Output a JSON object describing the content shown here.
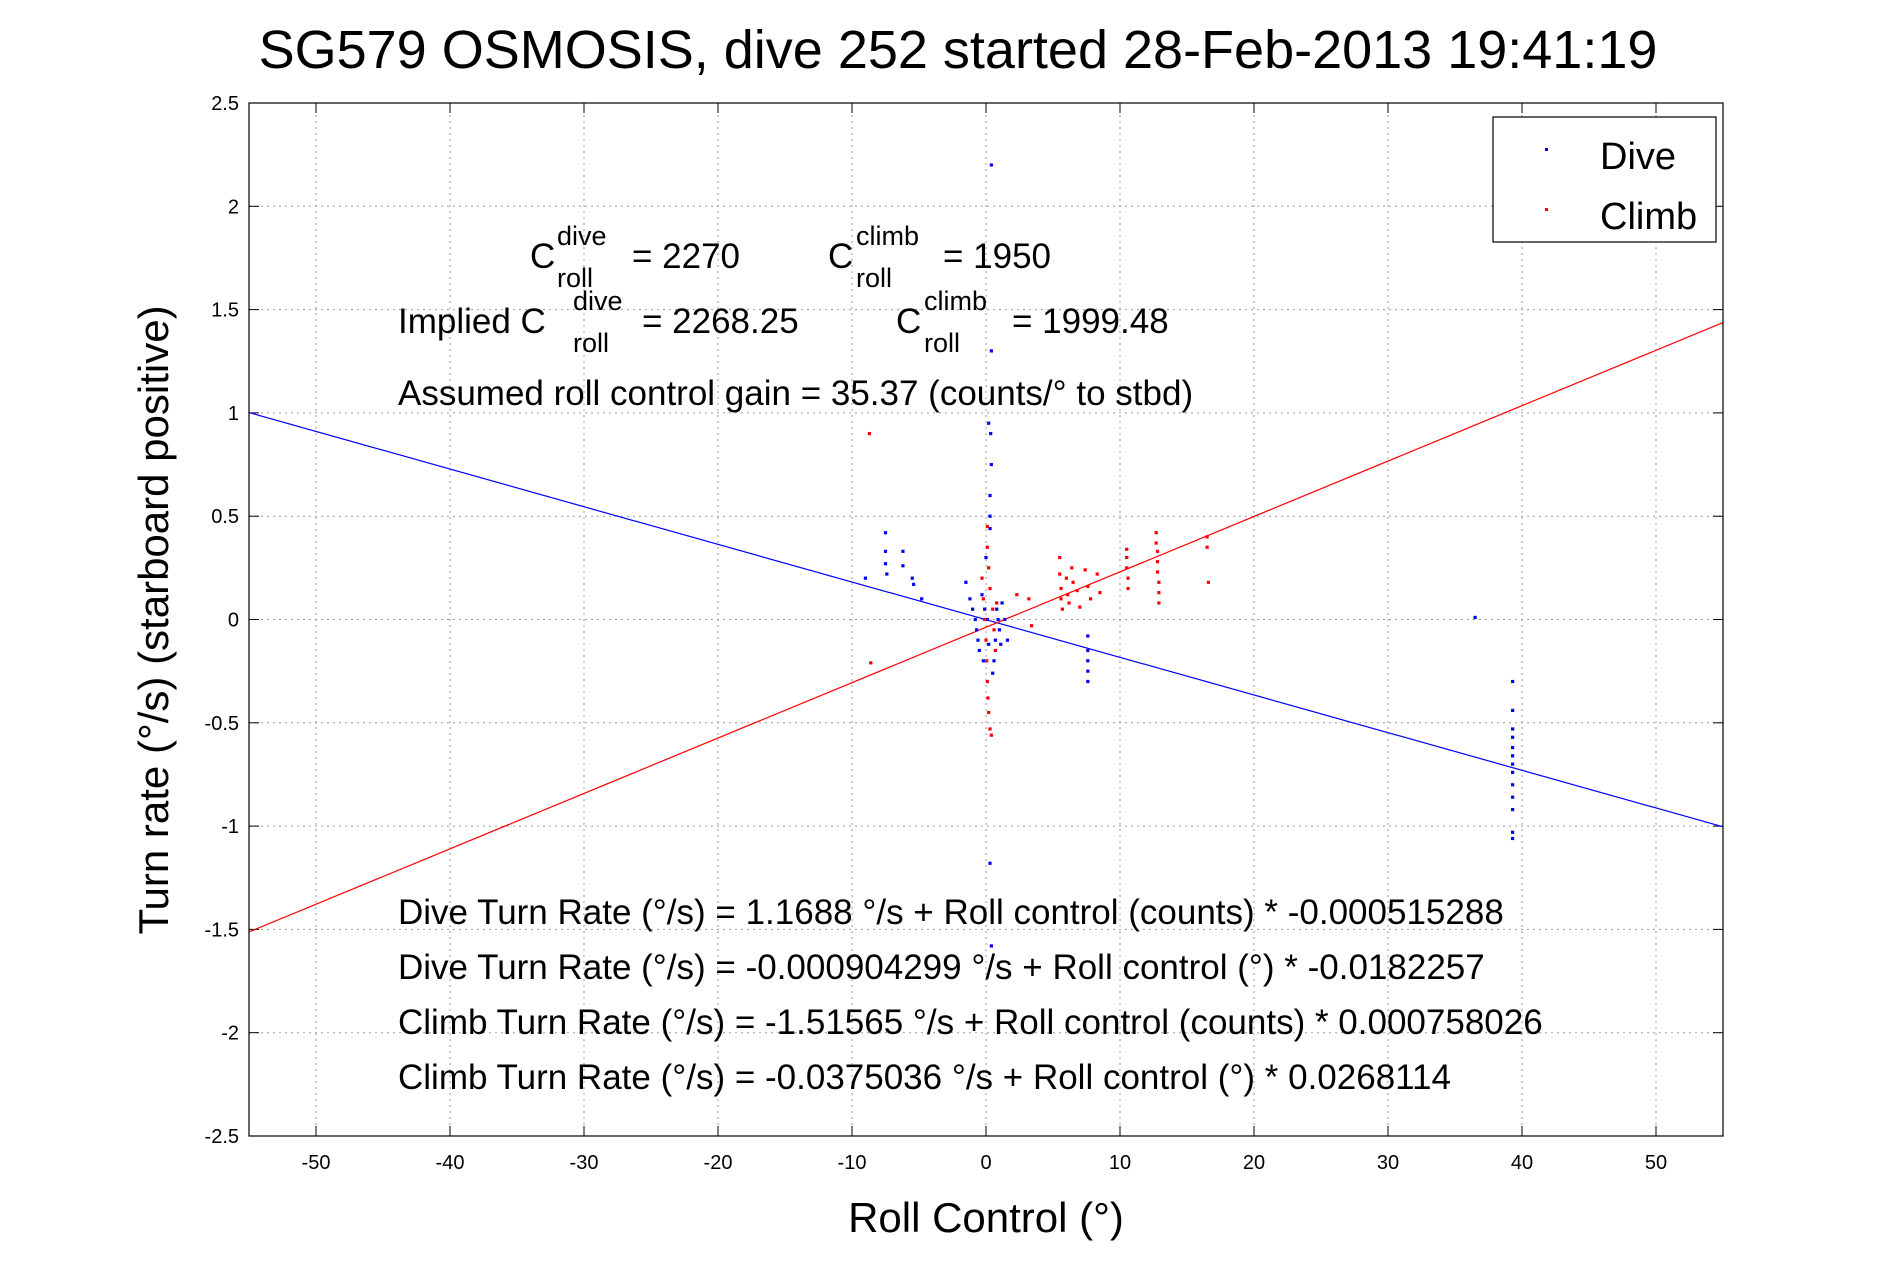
{
  "chart_data": {
    "type": "scatter",
    "title": "SG579 OSMOSIS, dive 252 started 28-Feb-2013 19:41:19",
    "xlabel": "Roll Control (°)",
    "ylabel": "Turn rate (°/s) (starboard positive)",
    "xlim": [
      -55,
      55
    ],
    "ylim": [
      -2.5,
      2.5
    ],
    "xticks": [
      "-50",
      "-40",
      "-30",
      "-20",
      "-10",
      "0",
      "10",
      "20",
      "30",
      "40",
      "50"
    ],
    "yticks": [
      "2.5",
      "2",
      "1.5",
      "1",
      "0.5",
      "0",
      "-0.5",
      "-1",
      "-1.5",
      "-2",
      "-2.5"
    ],
    "grid": true,
    "legend_position": "top-right",
    "colors": {
      "dive": "#0000ff",
      "climb": "#ff0000"
    },
    "series": [
      {
        "name": "Dive",
        "color": "#0000ff",
        "points": [
          [
            -9,
            0.2
          ],
          [
            -7.5,
            0.42
          ],
          [
            -7.5,
            0.33
          ],
          [
            -7.5,
            0.27
          ],
          [
            -7.4,
            0.22
          ],
          [
            -6.2,
            0.33
          ],
          [
            -6.2,
            0.26
          ],
          [
            -5.5,
            0.2
          ],
          [
            -5.4,
            0.17
          ],
          [
            -4.8,
            0.1
          ],
          [
            -1.5,
            0.18
          ],
          [
            -1.2,
            0.1
          ],
          [
            -1.0,
            0.05
          ],
          [
            -0.8,
            0.0
          ],
          [
            -0.7,
            -0.05
          ],
          [
            -0.6,
            -0.1
          ],
          [
            -0.5,
            -0.15
          ],
          [
            -0.3,
            0.12
          ],
          [
            -0.2,
            -0.2
          ],
          [
            -0.1,
            0.05
          ],
          [
            0.0,
            0.3
          ],
          [
            0.1,
            0.0
          ],
          [
            0.2,
            -0.12
          ],
          [
            0.3,
            0.6
          ],
          [
            0.35,
            0.9
          ],
          [
            0.3,
            0.5
          ],
          [
            0.3,
            0.44
          ],
          [
            0.4,
            0.75
          ],
          [
            0.2,
            0.95
          ],
          [
            0.4,
            1.3
          ],
          [
            0.4,
            2.2
          ],
          [
            0.3,
            -1.18
          ],
          [
            0.4,
            -1.58
          ],
          [
            0.5,
            -0.26
          ],
          [
            0.6,
            -0.2
          ],
          [
            0.7,
            -0.1
          ],
          [
            0.8,
            0.05
          ],
          [
            0.9,
            0.0
          ],
          [
            1.0,
            -0.05
          ],
          [
            1.1,
            -0.12
          ],
          [
            1.2,
            0.08
          ],
          [
            1.4,
            0.0
          ],
          [
            1.6,
            -0.1
          ],
          [
            7.6,
            -0.08
          ],
          [
            7.6,
            -0.15
          ],
          [
            7.6,
            -0.2
          ],
          [
            7.6,
            -0.25
          ],
          [
            7.6,
            -0.3
          ],
          [
            36.5,
            0.01
          ],
          [
            39.3,
            -0.3
          ],
          [
            39.3,
            -0.44
          ],
          [
            39.3,
            -0.53
          ],
          [
            39.3,
            -0.57
          ],
          [
            39.3,
            -0.62
          ],
          [
            39.3,
            -0.66
          ],
          [
            39.3,
            -0.7
          ],
          [
            39.3,
            -0.74
          ],
          [
            39.3,
            -0.8
          ],
          [
            39.3,
            -0.86
          ],
          [
            39.3,
            -0.92
          ],
          [
            39.3,
            -1.03
          ],
          [
            39.3,
            -1.06
          ]
        ]
      },
      {
        "name": "Climb",
        "color": "#ff0000",
        "points": [
          [
            -8.7,
            0.9
          ],
          [
            -8.6,
            -0.21
          ],
          [
            -0.3,
            0.2
          ],
          [
            -0.2,
            0.1
          ],
          [
            -0.1,
            0.0
          ],
          [
            0.0,
            -0.1
          ],
          [
            0.05,
            -0.2
          ],
          [
            0.1,
            -0.3
          ],
          [
            0.1,
            0.35
          ],
          [
            0.1,
            0.45
          ],
          [
            0.15,
            -0.38
          ],
          [
            0.2,
            0.25
          ],
          [
            0.2,
            -0.45
          ],
          [
            0.3,
            0.15
          ],
          [
            0.3,
            -0.53
          ],
          [
            0.4,
            -0.56
          ],
          [
            0.5,
            0.05
          ],
          [
            0.6,
            -0.05
          ],
          [
            0.7,
            -0.15
          ],
          [
            0.8,
            0.08
          ],
          [
            2.3,
            0.12
          ],
          [
            3.2,
            0.1
          ],
          [
            3.4,
            -0.03
          ],
          [
            5.5,
            0.3
          ],
          [
            5.5,
            0.22
          ],
          [
            5.6,
            0.15
          ],
          [
            5.6,
            0.1
          ],
          [
            5.7,
            0.05
          ],
          [
            6.0,
            0.2
          ],
          [
            6.1,
            0.12
          ],
          [
            6.2,
            0.08
          ],
          [
            6.4,
            0.25
          ],
          [
            6.5,
            0.18
          ],
          [
            6.8,
            0.14
          ],
          [
            7.0,
            0.06
          ],
          [
            7.4,
            0.24
          ],
          [
            7.6,
            0.16
          ],
          [
            7.8,
            0.1
          ],
          [
            8.3,
            0.22
          ],
          [
            8.5,
            0.13
          ],
          [
            10.5,
            0.34
          ],
          [
            10.5,
            0.3
          ],
          [
            10.5,
            0.25
          ],
          [
            10.6,
            0.2
          ],
          [
            10.6,
            0.15
          ],
          [
            12.7,
            0.42
          ],
          [
            12.7,
            0.37
          ],
          [
            12.8,
            0.33
          ],
          [
            12.8,
            0.28
          ],
          [
            12.8,
            0.23
          ],
          [
            12.9,
            0.18
          ],
          [
            12.9,
            0.13
          ],
          [
            12.9,
            0.08
          ],
          [
            16.5,
            0.4
          ],
          [
            16.5,
            0.35
          ],
          [
            16.6,
            0.18
          ]
        ]
      }
    ],
    "fit_lines": [
      {
        "series": "Dive",
        "intercept": -0.000904299,
        "slope": -0.0182257
      },
      {
        "series": "Climb",
        "intercept": -0.0375036,
        "slope": 0.0268114
      }
    ]
  },
  "annotations": {
    "c_roll_dive_C": "C",
    "c_roll_dive_sup": "dive",
    "c_roll_dive_sub": "roll",
    "c_roll_dive_val": "= 2270",
    "c_roll_climb_C": "C",
    "c_roll_climb_sup": "climb",
    "c_roll_climb_sub": "roll",
    "c_roll_climb_val": "= 1950",
    "implied_prefix": "Implied C",
    "implied_dive_sup": "dive",
    "implied_dive_sub": "roll",
    "implied_dive_val": "= 2268.25",
    "implied_climb_C": "C",
    "implied_climb_sup": "climb",
    "implied_climb_sub": "roll",
    "implied_climb_val": "= 1999.48",
    "gain": "Assumed roll control gain = 35.37 (counts/° to stbd)",
    "fit1": "Dive Turn Rate (°/s) = 1.1688 °/s + Roll control (counts) * -0.000515288",
    "fit2": "Dive Turn Rate (°/s) = -0.000904299 °/s + Roll control (°) * -0.0182257",
    "fit3": "Climb Turn Rate (°/s) = -1.51565 °/s + Roll control (counts) * 0.000758026",
    "fit4": "Climb Turn Rate (°/s) = -0.0375036 °/s + Roll control (°) * 0.0268114"
  }
}
